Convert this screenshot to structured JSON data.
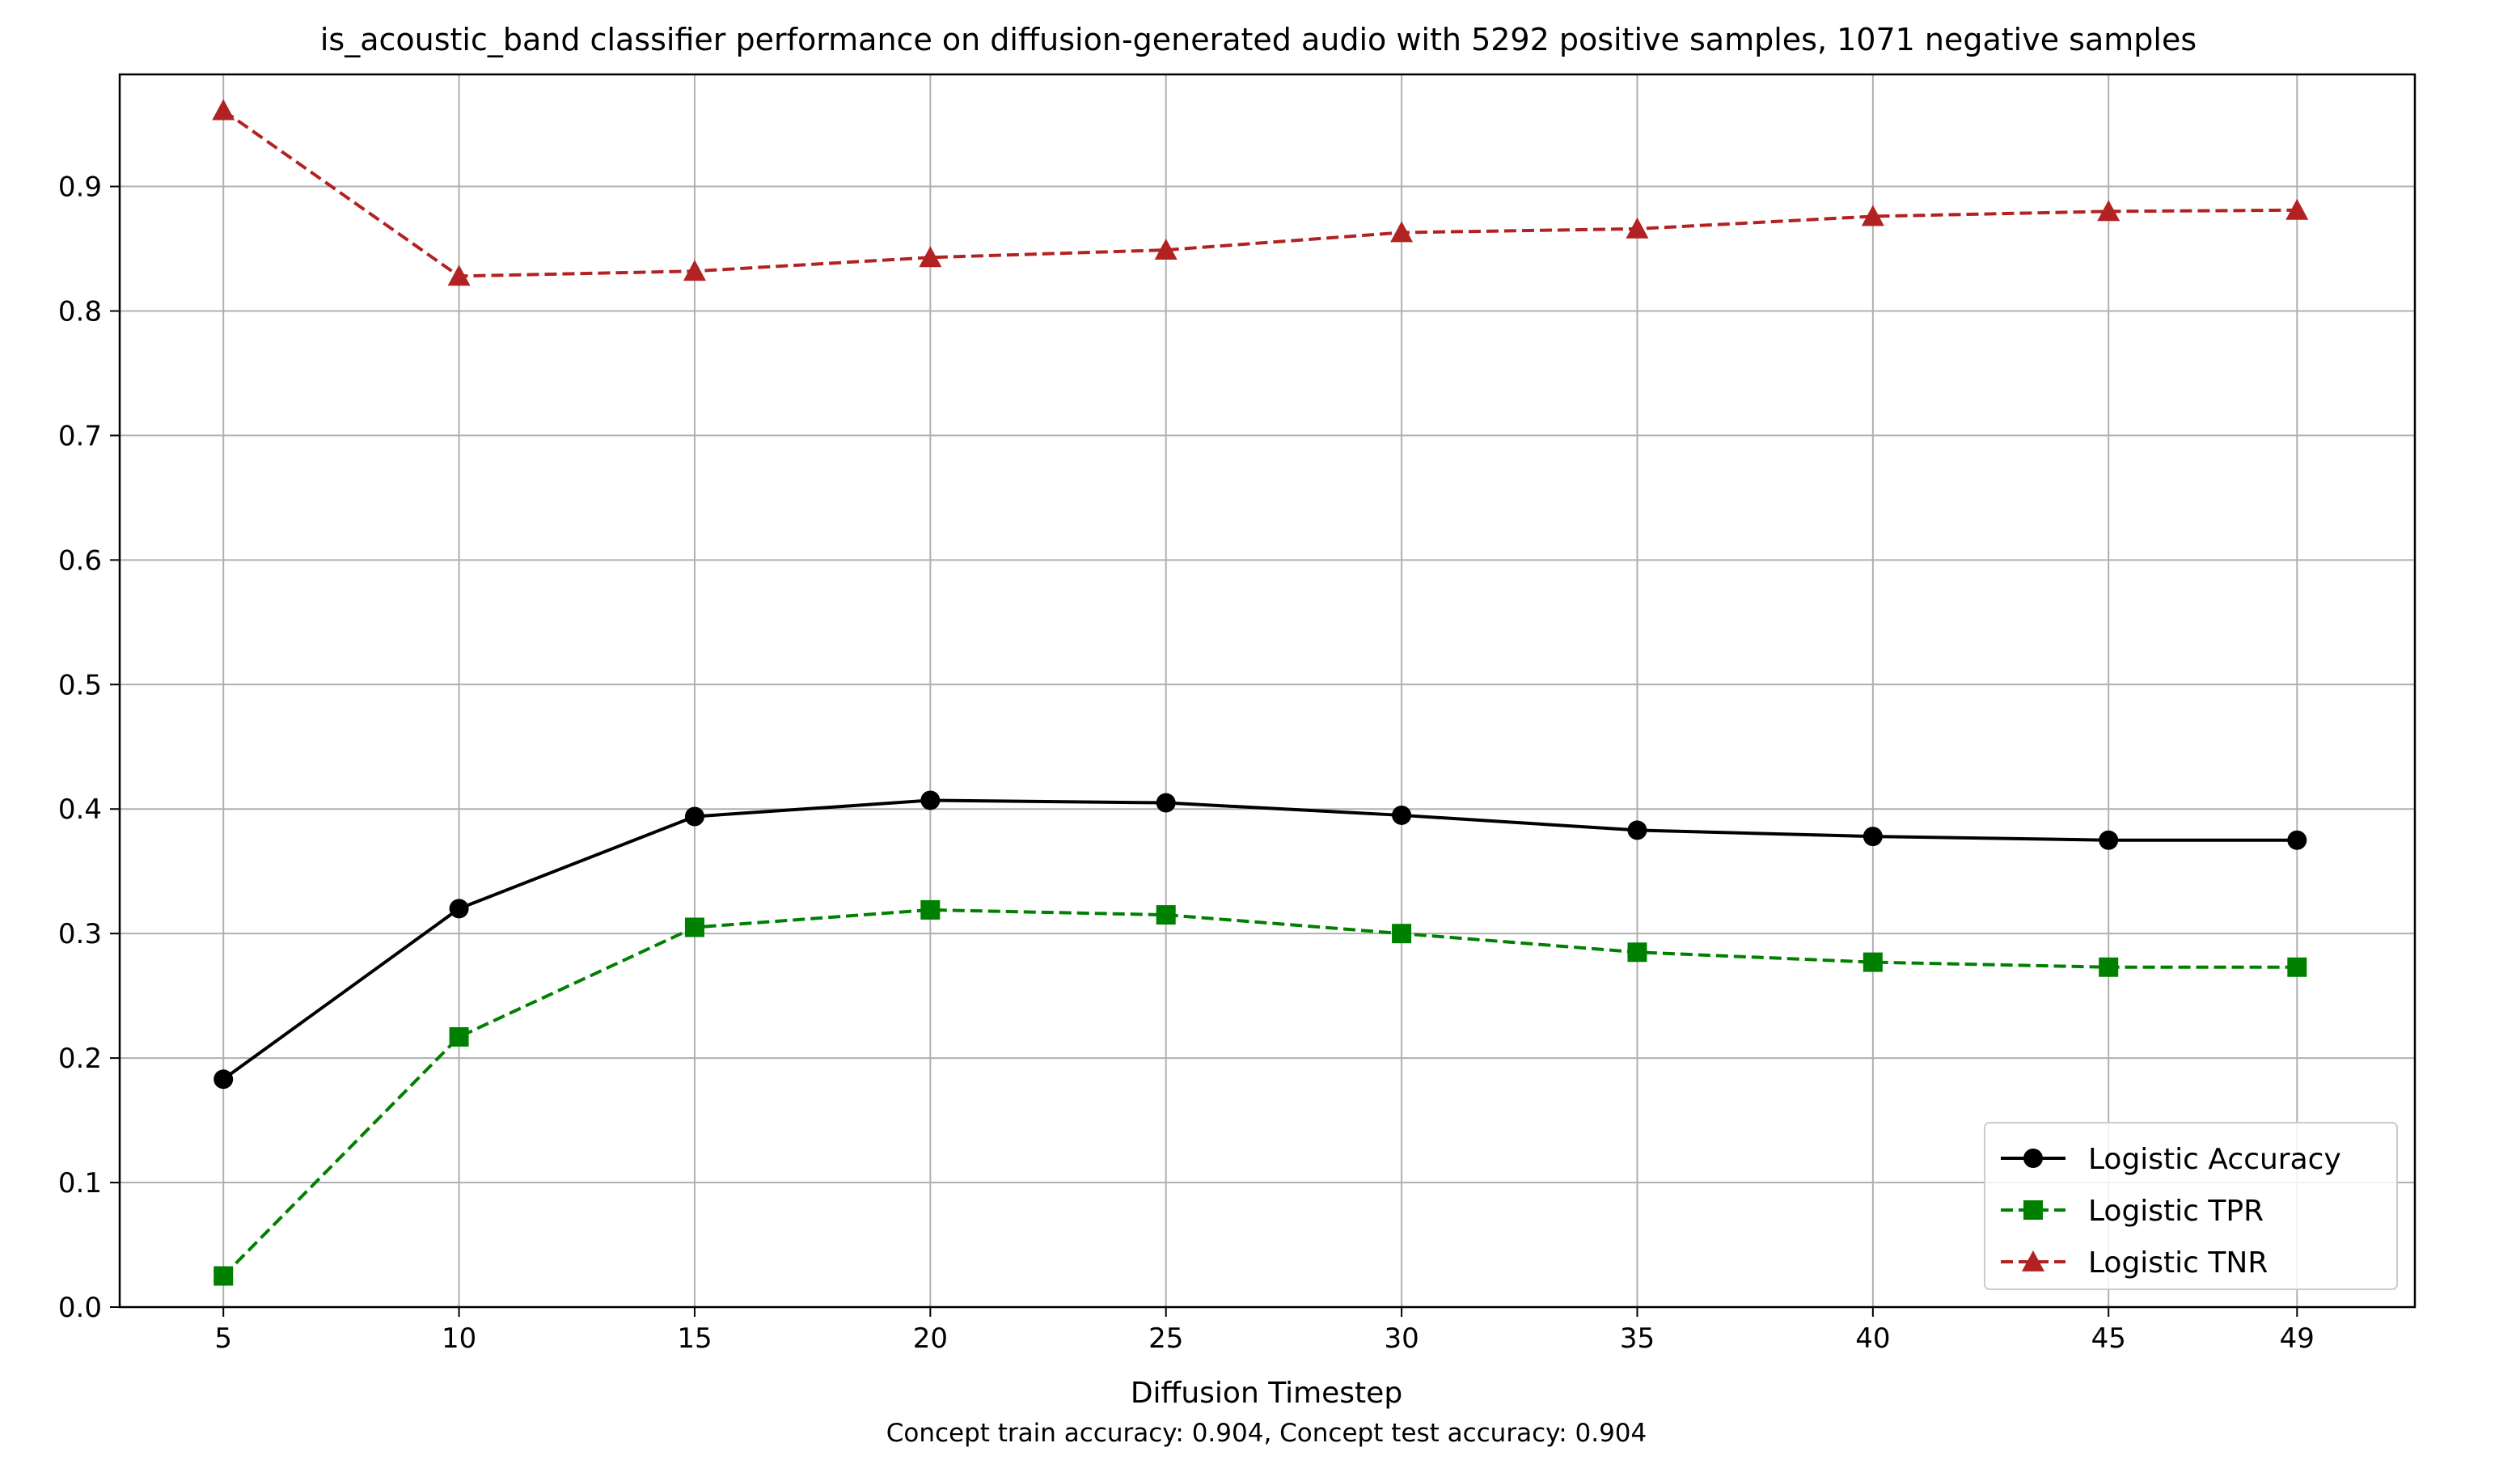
{
  "chart_data": {
    "type": "line",
    "title": "is_acoustic_band classifier performance on diffusion-generated audio with 5292 positive samples, 1071 negative samples",
    "xlabel": "Diffusion Timestep",
    "ylabel": "",
    "footnote": "Concept train accuracy: 0.904, Concept test accuracy: 0.904",
    "x": [
      5,
      10,
      15,
      20,
      25,
      30,
      35,
      40,
      45,
      49
    ],
    "xlim": [
      2.8,
      51.5
    ],
    "ylim": [
      0.0,
      0.99
    ],
    "yticks": [
      "0.0",
      "0.1",
      "0.2",
      "0.3",
      "0.4",
      "0.5",
      "0.6",
      "0.7",
      "0.8",
      "0.9"
    ],
    "grid": true,
    "legend_position": "lower-right",
    "series": [
      {
        "name": "Logistic Accuracy",
        "color": "#000000",
        "dash": "solid",
        "marker": "circle",
        "values": [
          0.183,
          0.32,
          0.394,
          0.407,
          0.405,
          0.395,
          0.383,
          0.378,
          0.375,
          0.375
        ]
      },
      {
        "name": "Logistic TPR",
        "color": "#008000",
        "dash": "dashed",
        "marker": "square",
        "values": [
          0.025,
          0.217,
          0.305,
          0.319,
          0.315,
          0.3,
          0.285,
          0.277,
          0.273,
          0.273
        ]
      },
      {
        "name": "Logistic TNR",
        "color": "#b22222",
        "dash": "dashed",
        "marker": "triangle",
        "values": [
          0.961,
          0.828,
          0.832,
          0.843,
          0.849,
          0.863,
          0.866,
          0.876,
          0.88,
          0.881
        ]
      }
    ]
  }
}
